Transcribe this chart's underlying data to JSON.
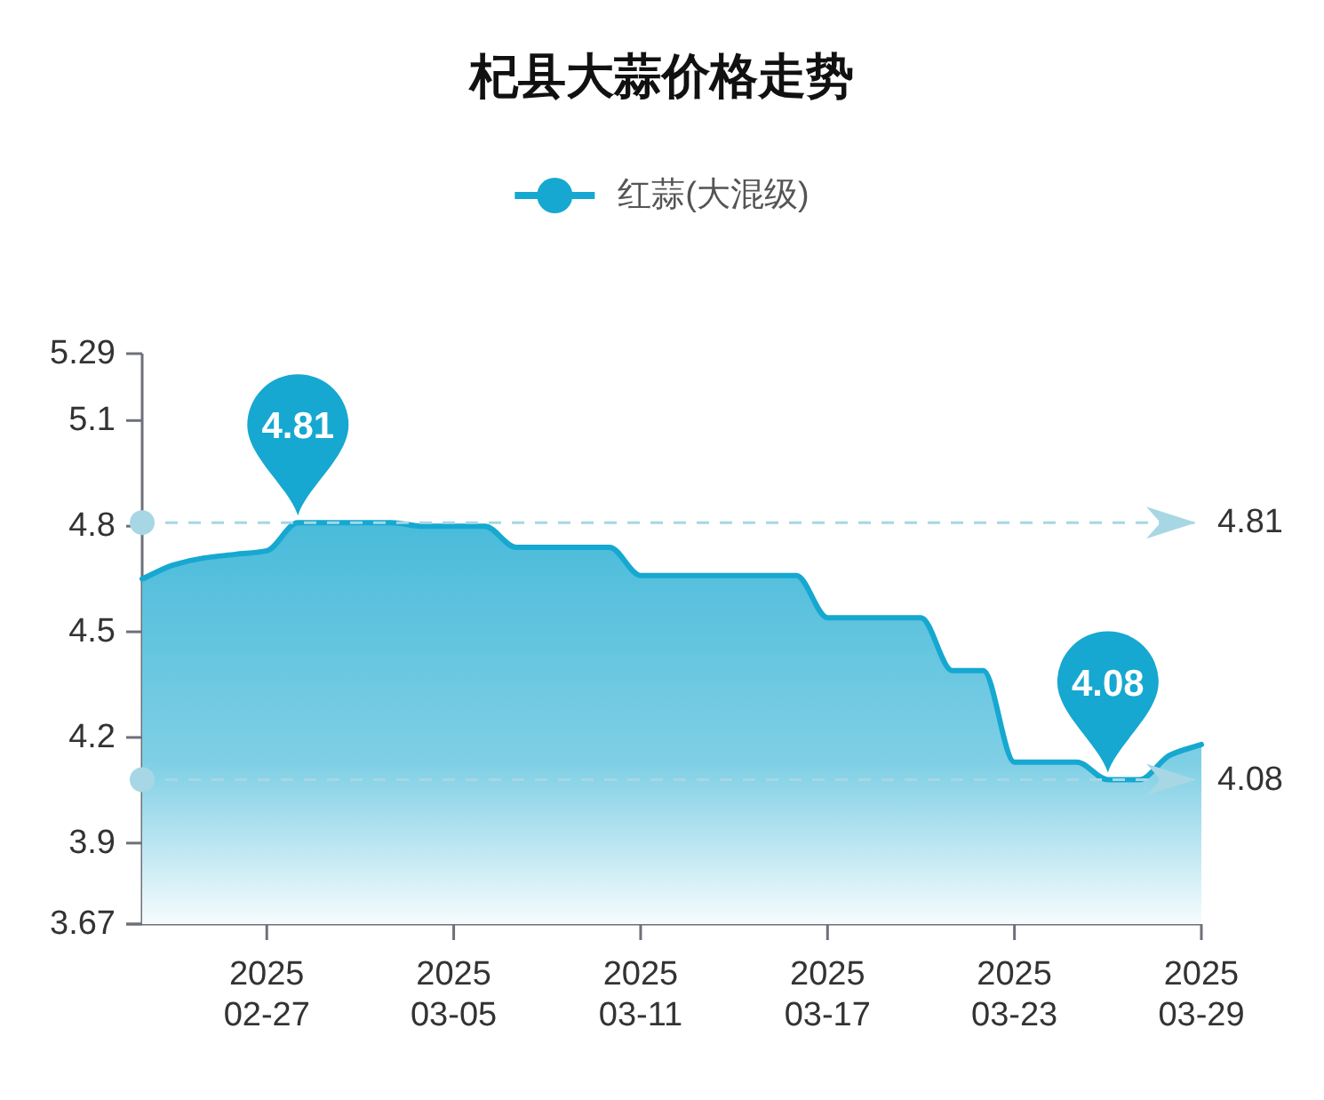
{
  "chart_data": {
    "type": "area",
    "title": "杞县大蒜价格走势",
    "x": [
      "2025-02-23",
      "2025-02-24",
      "2025-02-25",
      "2025-02-26",
      "2025-02-27",
      "2025-02-28",
      "2025-03-01",
      "2025-03-02",
      "2025-03-03",
      "2025-03-04",
      "2025-03-05",
      "2025-03-06",
      "2025-03-07",
      "2025-03-08",
      "2025-03-09",
      "2025-03-10",
      "2025-03-11",
      "2025-03-12",
      "2025-03-13",
      "2025-03-14",
      "2025-03-15",
      "2025-03-16",
      "2025-03-17",
      "2025-03-18",
      "2025-03-19",
      "2025-03-20",
      "2025-03-21",
      "2025-03-22",
      "2025-03-23",
      "2025-03-24",
      "2025-03-25",
      "2025-03-26",
      "2025-03-27",
      "2025-03-28",
      "2025-03-29"
    ],
    "series": [
      {
        "name": "红蒜(大混级)",
        "color": "#16a8d0",
        "values": [
          4.65,
          4.69,
          4.71,
          4.72,
          4.73,
          4.81,
          4.81,
          4.81,
          4.81,
          4.8,
          4.8,
          4.8,
          4.74,
          4.74,
          4.74,
          4.74,
          4.66,
          4.66,
          4.66,
          4.66,
          4.66,
          4.66,
          4.54,
          4.54,
          4.54,
          4.54,
          4.39,
          4.39,
          4.13,
          4.13,
          4.13,
          4.08,
          4.08,
          4.15,
          4.18
        ]
      }
    ],
    "xlim": [
      "2025-02-23",
      "2025-03-29"
    ],
    "xticks": [
      {
        "value": "2025-02-27",
        "label": "2025\n02-27"
      },
      {
        "value": "2025-03-05",
        "label": "2025\n03-05"
      },
      {
        "value": "2025-03-11",
        "label": "2025\n03-11"
      },
      {
        "value": "2025-03-17",
        "label": "2025\n03-17"
      },
      {
        "value": "2025-03-23",
        "label": "2025\n03-23"
      },
      {
        "value": "2025-03-29",
        "label": "2025\n03-29"
      }
    ],
    "ylim": [
      3.67,
      5.29
    ],
    "yticks": [
      3.67,
      3.9,
      4.2,
      4.5,
      4.8,
      5.1,
      5.29
    ],
    "ref_lines": [
      {
        "axis": "y",
        "value": 4.81,
        "label": "4.81",
        "color": "#a7d7e4",
        "line_style": "dashed"
      },
      {
        "axis": "y",
        "value": 4.08,
        "label": "4.08",
        "color": "#a7d7e4",
        "line_style": "dashed"
      }
    ],
    "annotations": [
      {
        "text": "4.81",
        "x": "2025-02-28",
        "y": 4.81
      },
      {
        "text": "4.08",
        "x": "2025-03-26",
        "y": 4.08
      }
    ],
    "legend": "top"
  }
}
